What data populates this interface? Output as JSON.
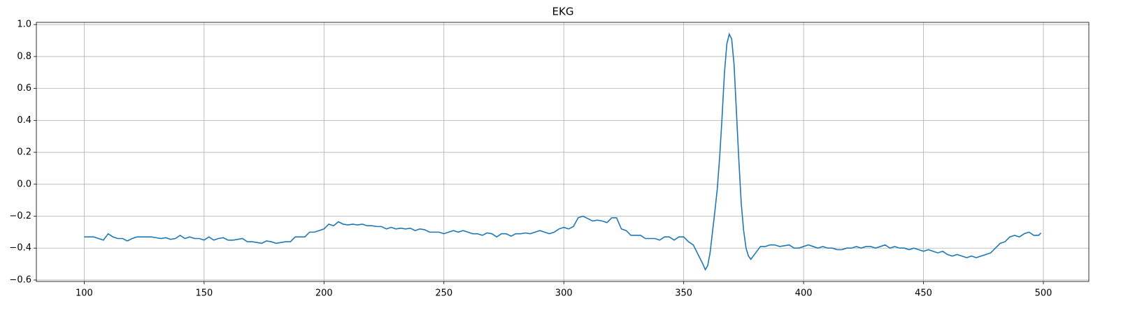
{
  "chart_data": {
    "type": "line",
    "title": "EKG",
    "xlim": [
      80.05,
      518.95
    ],
    "ylim": [
      -0.609,
      1.014
    ],
    "xticks": [
      100,
      150,
      200,
      250,
      300,
      350,
      400,
      450,
      500
    ],
    "yticks": [
      {
        "value": -0.6,
        "label": "−0.6"
      },
      {
        "value": -0.4,
        "label": "−0.4"
      },
      {
        "value": -0.2,
        "label": "−0.2"
      },
      {
        "value": 0,
        "label": "0.0"
      },
      0.2,
      0.4,
      0.6,
      0.8,
      {
        "value": 1,
        "label": "1.0"
      }
    ],
    "grid": true,
    "series": [
      {
        "color": "#1f77b4",
        "x": [
          100,
          102,
          104,
          106,
          108,
          110,
          112,
          114,
          116,
          118,
          120,
          122,
          124,
          126,
          128,
          130,
          132,
          134,
          136,
          138,
          140,
          142,
          144,
          146,
          148,
          150,
          152,
          154,
          156,
          158,
          160,
          162,
          164,
          166,
          168,
          170,
          172,
          174,
          176,
          178,
          180,
          182,
          184,
          186,
          188,
          190,
          192,
          194,
          196,
          198,
          200,
          202,
          204,
          206,
          208,
          210,
          212,
          214,
          216,
          218,
          220,
          222,
          224,
          226,
          228,
          230,
          232,
          234,
          236,
          238,
          240,
          242,
          244,
          246,
          248,
          250,
          252,
          254,
          256,
          258,
          260,
          262,
          264,
          266,
          268,
          270,
          272,
          274,
          276,
          278,
          280,
          282,
          284,
          286,
          288,
          290,
          292,
          294,
          296,
          298,
          300,
          302,
          304,
          306,
          308,
          310,
          312,
          314,
          316,
          318,
          320,
          322,
          324,
          326,
          328,
          330,
          332,
          334,
          336,
          338,
          340,
          342,
          344,
          346,
          348,
          350,
          352,
          354,
          356,
          358,
          359,
          360,
          361,
          362,
          363,
          364,
          365,
          366,
          367,
          368,
          369,
          370,
          371,
          372,
          373,
          374,
          375,
          376,
          377,
          378,
          380,
          382,
          384,
          386,
          388,
          390,
          392,
          394,
          396,
          398,
          400,
          402,
          404,
          406,
          408,
          410,
          412,
          414,
          416,
          418,
          420,
          422,
          424,
          426,
          428,
          430,
          432,
          434,
          436,
          438,
          440,
          442,
          444,
          446,
          448,
          450,
          452,
          454,
          456,
          458,
          460,
          462,
          464,
          466,
          468,
          470,
          472,
          474,
          476,
          478,
          480,
          482,
          484,
          486,
          488,
          490,
          492,
          494,
          496,
          498,
          499
        ],
        "values": [
          -0.33,
          -0.33,
          -0.33,
          -0.34,
          -0.35,
          -0.31,
          -0.33,
          -0.34,
          -0.34,
          -0.355,
          -0.34,
          -0.33,
          -0.33,
          -0.33,
          -0.33,
          -0.335,
          -0.34,
          -0.335,
          -0.345,
          -0.34,
          -0.32,
          -0.34,
          -0.33,
          -0.34,
          -0.34,
          -0.35,
          -0.33,
          -0.35,
          -0.34,
          -0.335,
          -0.35,
          -0.35,
          -0.345,
          -0.34,
          -0.36,
          -0.36,
          -0.365,
          -0.37,
          -0.355,
          -0.36,
          -0.37,
          -0.365,
          -0.36,
          -0.36,
          -0.33,
          -0.33,
          -0.33,
          -0.3,
          -0.3,
          -0.29,
          -0.28,
          -0.25,
          -0.26,
          -0.235,
          -0.25,
          -0.255,
          -0.25,
          -0.255,
          -0.25,
          -0.26,
          -0.26,
          -0.265,
          -0.265,
          -0.28,
          -0.27,
          -0.28,
          -0.275,
          -0.28,
          -0.275,
          -0.29,
          -0.28,
          -0.285,
          -0.3,
          -0.3,
          -0.3,
          -0.31,
          -0.3,
          -0.29,
          -0.3,
          -0.29,
          -0.3,
          -0.31,
          -0.31,
          -0.32,
          -0.305,
          -0.31,
          -0.33,
          -0.31,
          -0.31,
          -0.325,
          -0.31,
          -0.31,
          -0.305,
          -0.31,
          -0.3,
          -0.29,
          -0.3,
          -0.31,
          -0.3,
          -0.28,
          -0.27,
          -0.28,
          -0.265,
          -0.21,
          -0.2,
          -0.215,
          -0.23,
          -0.225,
          -0.23,
          -0.24,
          -0.21,
          -0.21,
          -0.28,
          -0.29,
          -0.32,
          -0.32,
          -0.32,
          -0.34,
          -0.34,
          -0.34,
          -0.35,
          -0.33,
          -0.33,
          -0.35,
          -0.33,
          -0.33,
          -0.36,
          -0.38,
          -0.44,
          -0.5,
          -0.535,
          -0.51,
          -0.43,
          -0.3,
          -0.17,
          -0.03,
          0.17,
          0.42,
          0.7,
          0.88,
          0.94,
          0.91,
          0.75,
          0.45,
          0.15,
          -0.12,
          -0.29,
          -0.4,
          -0.45,
          -0.47,
          -0.43,
          -0.39,
          -0.39,
          -0.38,
          -0.38,
          -0.39,
          -0.385,
          -0.38,
          -0.4,
          -0.4,
          -0.39,
          -0.38,
          -0.39,
          -0.4,
          -0.39,
          -0.4,
          -0.4,
          -0.41,
          -0.41,
          -0.4,
          -0.4,
          -0.39,
          -0.4,
          -0.39,
          -0.39,
          -0.4,
          -0.39,
          -0.38,
          -0.4,
          -0.39,
          -0.4,
          -0.4,
          -0.41,
          -0.4,
          -0.41,
          -0.42,
          -0.41,
          -0.42,
          -0.43,
          -0.42,
          -0.44,
          -0.45,
          -0.44,
          -0.45,
          -0.46,
          -0.45,
          -0.46,
          -0.45,
          -0.44,
          -0.43,
          -0.4,
          -0.37,
          -0.36,
          -0.33,
          -0.32,
          -0.33,
          -0.31,
          -0.3,
          -0.32,
          -0.32,
          -0.305
        ]
      }
    ]
  }
}
